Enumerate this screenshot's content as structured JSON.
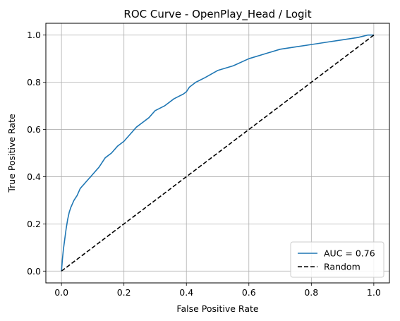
{
  "chart_data": {
    "type": "line",
    "title": "ROC Curve - OpenPlay_Head / Logit",
    "xlabel": "False Positive Rate",
    "ylabel": "True Positive Rate",
    "xlim": [
      -0.05,
      1.05
    ],
    "ylim": [
      -0.05,
      1.05
    ],
    "xticks": [
      "0.0",
      "0.2",
      "0.4",
      "0.6",
      "0.8",
      "1.0"
    ],
    "yticks": [
      "0.0",
      "0.2",
      "0.4",
      "0.6",
      "0.8",
      "1.0"
    ],
    "xtick_values": [
      0,
      0.2,
      0.4,
      0.6,
      0.8,
      1.0
    ],
    "ytick_values": [
      0,
      0.2,
      0.4,
      0.6,
      0.8,
      1.0
    ],
    "grid": true,
    "legend_position": "lower-right",
    "series": [
      {
        "name": "AUC = 0.76",
        "style": "solid",
        "color": "#1f77b4",
        "x": [
          0,
          0.003,
          0.006,
          0.01,
          0.015,
          0.02,
          0.025,
          0.03,
          0.04,
          0.05,
          0.06,
          0.08,
          0.1,
          0.12,
          0.14,
          0.16,
          0.18,
          0.2,
          0.22,
          0.24,
          0.26,
          0.28,
          0.3,
          0.33,
          0.36,
          0.39,
          0.4,
          0.41,
          0.43,
          0.46,
          0.5,
          0.55,
          0.6,
          0.65,
          0.7,
          0.75,
          0.8,
          0.85,
          0.9,
          0.95,
          0.98,
          1.0
        ],
        "y": [
          0,
          0.05,
          0.09,
          0.13,
          0.18,
          0.22,
          0.25,
          0.27,
          0.3,
          0.32,
          0.35,
          0.38,
          0.41,
          0.44,
          0.48,
          0.5,
          0.53,
          0.55,
          0.58,
          0.61,
          0.63,
          0.65,
          0.68,
          0.7,
          0.73,
          0.75,
          0.76,
          0.78,
          0.8,
          0.82,
          0.85,
          0.87,
          0.9,
          0.92,
          0.94,
          0.95,
          0.96,
          0.97,
          0.98,
          0.99,
          1.0,
          1.0
        ]
      },
      {
        "name": "Random",
        "style": "dashed",
        "color": "#000000",
        "x": [
          0,
          1
        ],
        "y": [
          0,
          1
        ]
      }
    ]
  }
}
